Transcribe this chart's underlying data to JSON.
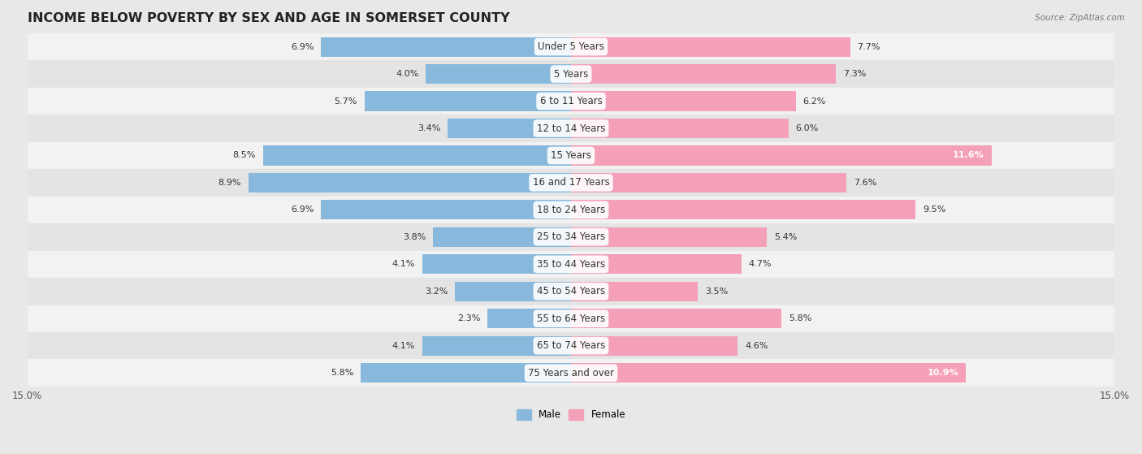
{
  "title": "INCOME BELOW POVERTY BY SEX AND AGE IN SOMERSET COUNTY",
  "source": "Source: ZipAtlas.com",
  "categories": [
    "Under 5 Years",
    "5 Years",
    "6 to 11 Years",
    "12 to 14 Years",
    "15 Years",
    "16 and 17 Years",
    "18 to 24 Years",
    "25 to 34 Years",
    "35 to 44 Years",
    "45 to 54 Years",
    "55 to 64 Years",
    "65 to 74 Years",
    "75 Years and over"
  ],
  "male_values": [
    6.9,
    4.0,
    5.7,
    3.4,
    8.5,
    8.9,
    6.9,
    3.8,
    4.1,
    3.2,
    2.3,
    4.1,
    5.8
  ],
  "female_values": [
    7.7,
    7.3,
    6.2,
    6.0,
    11.6,
    7.6,
    9.5,
    5.4,
    4.7,
    3.5,
    5.8,
    4.6,
    10.9
  ],
  "male_color": "#88b8dc",
  "female_color": "#f4a0b8",
  "male_label": "Male",
  "female_label": "Female",
  "xlim": 15.0,
  "bar_height": 0.72,
  "bg_color": "#e8e8e8",
  "row_bg_even": "#f2f2f2",
  "row_bg_odd": "#e4e4e4",
  "title_fontsize": 11.5,
  "label_fontsize": 8.5,
  "tick_fontsize": 8.5,
  "value_fontsize": 8.0
}
